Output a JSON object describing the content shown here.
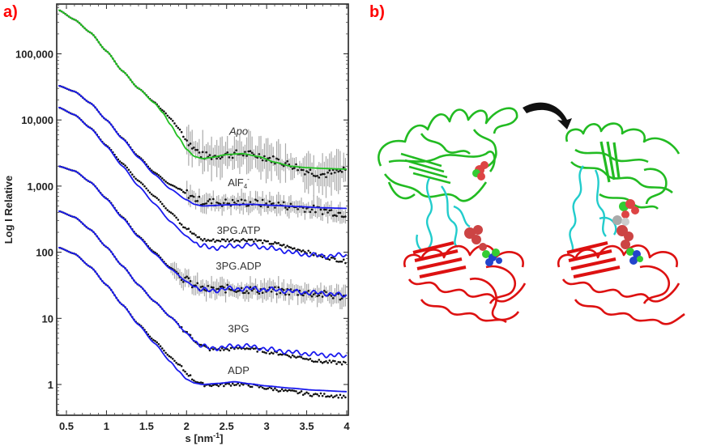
{
  "panels": {
    "a": {
      "label": "a)"
    },
    "b": {
      "label": "b)"
    }
  },
  "colors": {
    "panel_label": "#ff0000",
    "fit_apo": "#22c022",
    "fit_other": "#1a1aee",
    "data_points": "#111111",
    "error_bars": "#aaaaaa",
    "domain_top": "#22bb22",
    "domain_linker": "#22cccc",
    "domain_bottom": "#dd1111",
    "arrow": "#111111"
  },
  "chart_data": {
    "type": "line",
    "title": "",
    "xlabel": "s [nm-1]",
    "xlabel_main": "s [nm",
    "xlabel_sup": "-1",
    "xlabel_close": "]",
    "ylabel": "Log I Relative",
    "xlim": [
      0.4,
      4.0
    ],
    "ylim": [
      0.35,
      500000
    ],
    "yscale": "log",
    "x_ticks": [
      0.5,
      1,
      1.5,
      2,
      2.5,
      3,
      3.5,
      4
    ],
    "x_tick_labels": [
      "0.5",
      "1",
      "1.5",
      "2",
      "2.5",
      "3",
      "3.5",
      "4"
    ],
    "y_ticks": [
      1,
      10,
      100,
      1000,
      10000,
      100000
    ],
    "y_tick_labels": [
      "1",
      "10",
      "100",
      "1,000",
      "10,000",
      "100,000"
    ],
    "grid": false,
    "legend": "inline labels",
    "series": [
      {
        "name": "Apo",
        "italic": true,
        "label_pos": [
          2.65,
          6000
        ],
        "fit_color": "green",
        "x": [
          0.4,
          0.6,
          0.8,
          1.0,
          1.2,
          1.4,
          1.6,
          1.7,
          1.8,
          1.9,
          2.0,
          2.1,
          2.2,
          2.3,
          2.5,
          2.7,
          2.9,
          3.1,
          3.3,
          3.5,
          3.7,
          4.0
        ],
        "fit": [
          460000,
          330000,
          210000,
          110000,
          55000,
          30000,
          18000,
          13000,
          8500,
          5500,
          3600,
          2800,
          2600,
          2700,
          3000,
          3100,
          2800,
          2300,
          2000,
          1900,
          1850,
          1800
        ],
        "data": [
          460000,
          330000,
          210000,
          110000,
          55000,
          30000,
          18500,
          14000,
          10500,
          7500,
          5000,
          3600,
          2900,
          2800,
          3000,
          3100,
          2900,
          2500,
          2100,
          1700,
          1500,
          1700
        ],
        "noisy_from": 2.0
      },
      {
        "name": "AlF4-",
        "label_pos": [
          2.65,
          1000
        ],
        "fit_color": "blue",
        "x": [
          0.4,
          0.6,
          0.8,
          1.0,
          1.2,
          1.4,
          1.6,
          1.8,
          2.0,
          2.1,
          2.2,
          2.5,
          2.8,
          3.1,
          3.4,
          3.7,
          4.0
        ],
        "fit": [
          33000,
          27000,
          18000,
          10000,
          5200,
          2700,
          1500,
          900,
          620,
          530,
          500,
          520,
          530,
          510,
          490,
          470,
          460
        ],
        "data": [
          33000,
          27000,
          18000,
          10000,
          5300,
          2800,
          1600,
          1050,
          780,
          650,
          580,
          560,
          560,
          530,
          480,
          430,
          380
        ],
        "noisy_from": 2.0
      },
      {
        "name": "3PG.ATP",
        "label_pos": [
          2.65,
          190
        ],
        "fit_color": "blue",
        "x": [
          0.4,
          0.6,
          0.8,
          1.0,
          1.2,
          1.4,
          1.6,
          1.8,
          2.0,
          2.1,
          2.2,
          2.3,
          2.5,
          2.8,
          3.1,
          3.4,
          3.7,
          4.0
        ],
        "fit": [
          15500,
          12000,
          7500,
          4000,
          2000,
          1000,
          540,
          290,
          175,
          140,
          125,
          115,
          122,
          128,
          112,
          95,
          88,
          90
        ],
        "data": [
          15500,
          12000,
          7600,
          4100,
          2200,
          1200,
          700,
          400,
          230,
          180,
          155,
          150,
          152,
          155,
          135,
          110,
          85,
          72
        ],
        "noisy_from": 4.5
      },
      {
        "name": "3PG.ADP",
        "label_pos": [
          2.65,
          55
        ],
        "fit_color": "blue",
        "x": [
          0.4,
          0.6,
          0.8,
          1.0,
          1.2,
          1.4,
          1.6,
          1.8,
          2.0,
          2.1,
          2.2,
          2.3,
          2.5,
          2.8,
          3.1,
          3.4,
          3.7,
          4.0
        ],
        "fit": [
          2000,
          1700,
          1150,
          640,
          330,
          170,
          95,
          56,
          36,
          30,
          27,
          26,
          28,
          28,
          27,
          25,
          24,
          22
        ],
        "data": [
          2000,
          1700,
          1150,
          650,
          340,
          175,
          100,
          58,
          38,
          31,
          28,
          27,
          28,
          27,
          26,
          25,
          23,
          21
        ],
        "noisy_from": 1.8
      },
      {
        "name": "3PG",
        "label_pos": [
          2.65,
          6.2
        ],
        "fit_color": "blue",
        "x": [
          0.4,
          0.6,
          0.8,
          1.0,
          1.2,
          1.4,
          1.6,
          1.8,
          2.0,
          2.1,
          2.2,
          2.3,
          2.5,
          2.7,
          2.9,
          3.1,
          3.4,
          3.7,
          4.0
        ],
        "fit": [
          420,
          340,
          220,
          120,
          62,
          32,
          18,
          10.5,
          6.0,
          4.5,
          3.8,
          3.5,
          3.7,
          3.9,
          3.6,
          3.3,
          3.0,
          2.8,
          2.7
        ],
        "data": [
          420,
          340,
          220,
          120,
          62,
          32,
          18,
          10.5,
          6.2,
          4.6,
          3.8,
          3.4,
          3.4,
          3.6,
          3.3,
          3.0,
          2.6,
          2.2,
          2.1
        ],
        "noisy_from": 4.5
      },
      {
        "name": "ADP",
        "label_pos": [
          2.65,
          1.45
        ],
        "fit_color": "blue",
        "x": [
          0.4,
          0.6,
          0.8,
          1.0,
          1.2,
          1.4,
          1.6,
          1.8,
          1.9,
          2.0,
          2.1,
          2.2,
          2.4,
          2.6,
          2.8,
          3.0,
          3.3,
          3.6,
          4.0
        ],
        "fit": [
          118,
          95,
          60,
          32,
          16,
          8.0,
          4.2,
          2.2,
          1.6,
          1.2,
          1.05,
          1.0,
          1.04,
          1.1,
          1.02,
          0.95,
          0.88,
          0.82,
          0.78
        ],
        "data": [
          118,
          95,
          60,
          32,
          16,
          8.2,
          4.6,
          2.6,
          2.0,
          1.5,
          1.15,
          1.0,
          0.98,
          1.02,
          0.97,
          0.88,
          0.78,
          0.7,
          0.66
        ],
        "noisy_from": 4.5
      }
    ]
  },
  "structure_figure": {
    "description": "Protein ribbon structures in two conformations with a curved arrow indicating domain closure",
    "states": [
      "open",
      "closed"
    ],
    "domains": [
      "N-terminal domain (green)",
      "linker helices (cyan)",
      "C-terminal domain (red)"
    ],
    "ligands": "space-filling spheres (red, green, blue, grey)"
  }
}
